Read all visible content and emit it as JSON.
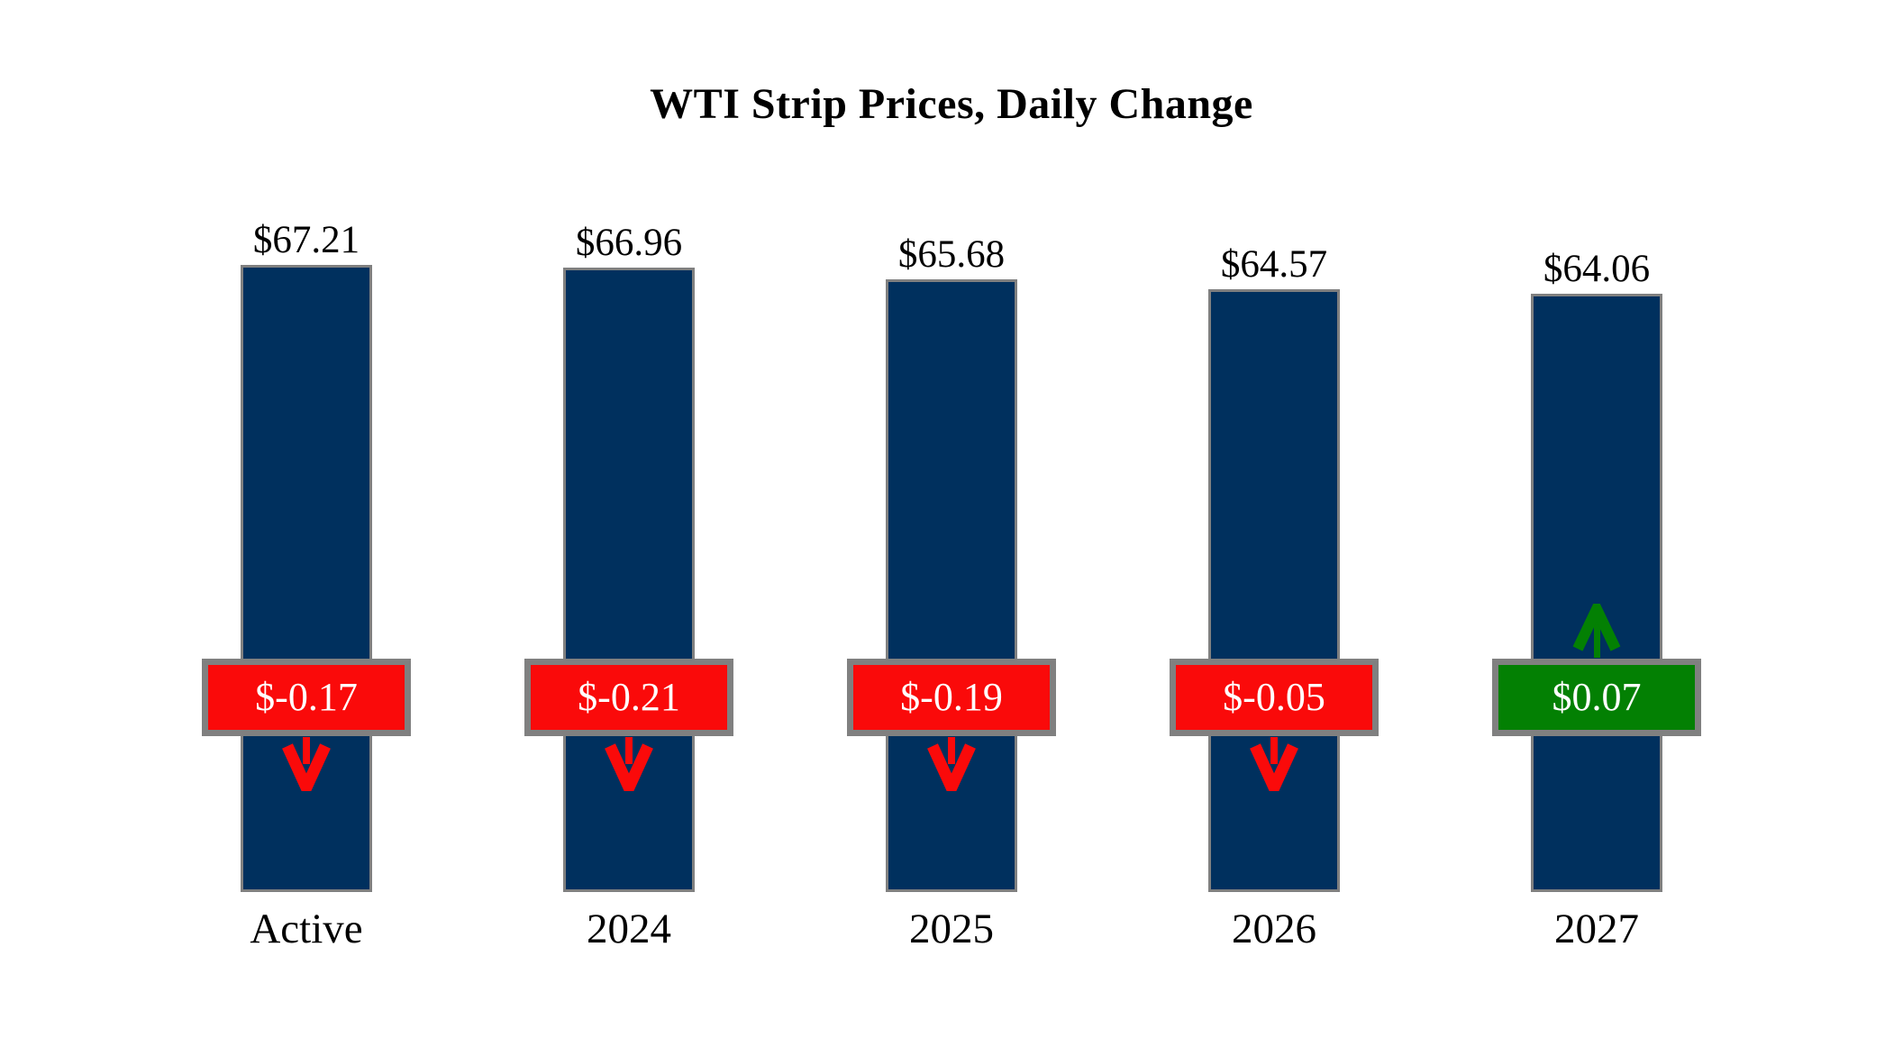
{
  "title": "WTI Strip Prices, Daily Change",
  "colors": {
    "background": "#FFFFFF",
    "bar_fill": "#00305E",
    "bar_border": "#808080",
    "negative": "#FA0A0A",
    "positive": "#038003",
    "box_border": "#808080",
    "box_text": "#FFFFFF",
    "label_text": "#000000"
  },
  "chart_data": {
    "type": "bar",
    "title": "WTI Strip Prices, Daily Change",
    "categories": [
      "Active",
      "2024",
      "2025",
      "2026",
      "2027"
    ],
    "series": [
      {
        "name": "WTI Strip Price ($)",
        "values": [
          67.21,
          66.96,
          65.68,
          64.57,
          64.06
        ]
      },
      {
        "name": "Daily Change ($)",
        "values": [
          -0.17,
          -0.21,
          -0.19,
          -0.05,
          0.07
        ]
      }
    ],
    "ylim": [
      0,
      67.21
    ],
    "grid": false,
    "legend": false,
    "bars": [
      {
        "category": "Active",
        "price": 67.21,
        "price_label": "$67.21",
        "change": -0.17,
        "change_label": "$-0.17",
        "direction": "down"
      },
      {
        "category": "2024",
        "price": 66.96,
        "price_label": "$66.96",
        "change": -0.21,
        "change_label": "$-0.21",
        "direction": "down"
      },
      {
        "category": "2025",
        "price": 65.68,
        "price_label": "$65.68",
        "change": -0.19,
        "change_label": "$-0.19",
        "direction": "down"
      },
      {
        "category": "2026",
        "price": 64.57,
        "price_label": "$64.57",
        "change": -0.05,
        "change_label": "$-0.05",
        "direction": "down"
      },
      {
        "category": "2027",
        "price": 64.06,
        "price_label": "$64.06",
        "change": 0.07,
        "change_label": "$0.07",
        "direction": "up"
      }
    ]
  }
}
